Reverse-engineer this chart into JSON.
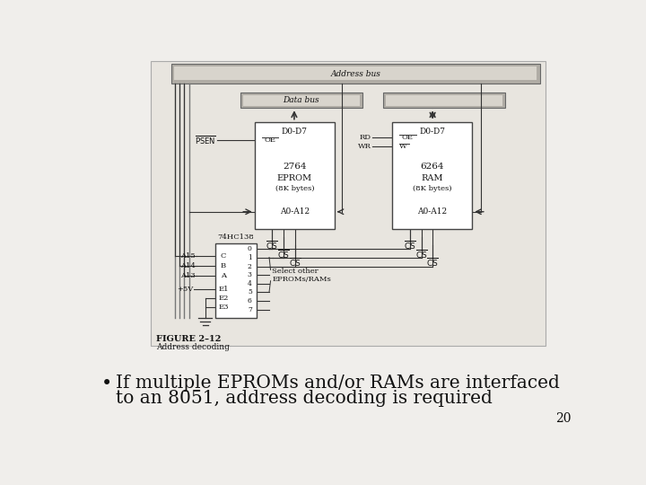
{
  "slide_bg": "#f0eeeb",
  "diagram_bg": "#e8e5df",
  "bus_outer": "#999999",
  "bus_inner": "#d0cdc8",
  "chip_fill": "#ffffff",
  "chip_edge": "#444444",
  "line_color": "#333333",
  "text_color": "#111111",
  "bullet_text_line1": "If multiple EPROMs and/or RAMs are interfaced",
  "bullet_text_line2": "to an 8051, address decoding is required",
  "figure_label": "FIGURE 2–12",
  "figure_caption": "Address decoding",
  "page_number": "20"
}
